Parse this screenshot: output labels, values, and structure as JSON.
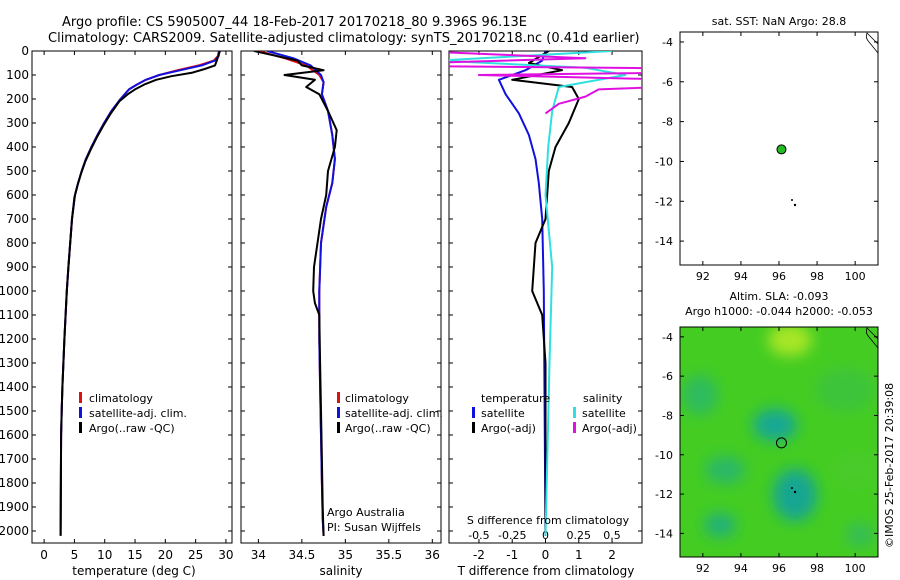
{
  "header": {
    "line1": "Argo profile: CS 5905007_44 18-Feb-2017 20170218_80 9.396S 96.13E",
    "line2": "Climatology: CARS2009. Satellite-adjusted climatology: synTS_20170218.nc (0.41d earlier)"
  },
  "colors": {
    "climatology": "#e01010",
    "satellite": "#1010e0",
    "argo": "#000000",
    "sat_salinity": "#30e0e0",
    "argo_salinity": "#e010e0",
    "marker_fill": "#22bb22",
    "sla_green": "#44cc22",
    "sla_teal": "#1aae88"
  },
  "chart_data": [
    {
      "id": "temperature",
      "type": "line",
      "xlabel": "temperature (deg C)",
      "ylabel": "",
      "xlim": [
        -2,
        31
      ],
      "ylim": [
        2050,
        0
      ],
      "xticks": [
        0,
        5,
        10,
        15,
        20,
        25,
        30
      ],
      "yticks": [
        0,
        100,
        200,
        300,
        400,
        500,
        600,
        700,
        800,
        900,
        1000,
        1100,
        1200,
        1300,
        1400,
        1500,
        1600,
        1700,
        1800,
        1900,
        2000
      ],
      "legend": [
        "climatology",
        "satellite-adj. clim.",
        "Argo(..raw -QC)"
      ],
      "series": [
        {
          "name": "climatology",
          "color": "#e01010",
          "x": [
            28.8,
            28.7,
            28.0,
            25.5,
            22,
            19,
            16.8,
            15.3,
            14,
            12.6,
            11.1,
            9.9,
            8.8,
            7.8,
            6.9,
            6.2,
            5.6,
            5.1,
            4.6,
            4.3,
            4.0,
            3.75,
            3.55,
            3.35,
            3.18,
            3.02,
            2.9,
            2.8,
            2.72
          ],
          "y": [
            0,
            20,
            40,
            60,
            80,
            100,
            120,
            140,
            160,
            200,
            250,
            300,
            350,
            400,
            450,
            500,
            550,
            600,
            700,
            800,
            900,
            1000,
            1100,
            1200,
            1300,
            1400,
            1500,
            1600,
            2020
          ]
        },
        {
          "name": "satellite-adj. clim.",
          "color": "#1010e0",
          "x": [
            28.9,
            28.8,
            28.2,
            26,
            22.5,
            19,
            16.8,
            15.3,
            14,
            12.6,
            11.1,
            9.9,
            8.8,
            7.8,
            6.9,
            6.2,
            5.6,
            5.1,
            4.6,
            4.3,
            4.0,
            3.75,
            3.55,
            3.35,
            3.18,
            3.02,
            2.9,
            2.8,
            2.72
          ],
          "y": [
            0,
            20,
            40,
            60,
            80,
            100,
            120,
            140,
            160,
            200,
            250,
            300,
            350,
            400,
            450,
            500,
            550,
            600,
            700,
            800,
            900,
            1000,
            1100,
            1200,
            1300,
            1400,
            1500,
            1600,
            2020
          ]
        },
        {
          "name": "Argo(..raw -QC)",
          "color": "#000000",
          "x": [
            29.0,
            28.8,
            28.5,
            28.2,
            26.5,
            24.5,
            21,
            18.5,
            16.5,
            15.0,
            13.8,
            12.4,
            11.0,
            9.8,
            8.7,
            7.7,
            6.8,
            6.1,
            5.5,
            5.0,
            4.6,
            4.3,
            4.0,
            3.75,
            3.55,
            3.35,
            3.18,
            3.02,
            2.9,
            2.8,
            2.72
          ],
          "y": [
            0,
            15,
            40,
            60,
            75,
            90,
            105,
            120,
            140,
            160,
            180,
            210,
            260,
            310,
            360,
            410,
            460,
            510,
            560,
            610,
            700,
            800,
            900,
            1000,
            1100,
            1200,
            1300,
            1400,
            1500,
            1600,
            2020
          ]
        }
      ]
    },
    {
      "id": "salinity",
      "type": "line",
      "xlabel": "salinity",
      "xlim": [
        33.8,
        36.1
      ],
      "ylim": [
        2050,
        0
      ],
      "xticks": [
        34,
        34.5,
        35,
        35.5,
        36
      ],
      "legend": [
        "climatology",
        "satellite-adj. clim.",
        "Argo(..raw -QC)"
      ],
      "annotation": [
        "Argo Australia",
        "PI: Susan Wijffels"
      ],
      "series": [
        {
          "name": "climatology",
          "color": "#e01010",
          "x": [
            34.0,
            34.3,
            34.55,
            34.7,
            34.75,
            34.73,
            34.8,
            34.85,
            34.88,
            34.85,
            34.78,
            34.72,
            34.7,
            34.7,
            34.71,
            34.72,
            34.73,
            34.74,
            34.75
          ],
          "y": [
            0,
            30,
            60,
            100,
            130,
            180,
            250,
            350,
            450,
            550,
            650,
            800,
            1000,
            1200,
            1400,
            1600,
            1800,
            1950,
            2020
          ]
        },
        {
          "name": "satellite-adj. clim.",
          "color": "#1010e0",
          "x": [
            34.1,
            34.4,
            34.6,
            34.72,
            34.75,
            34.73,
            34.8,
            34.85,
            34.88,
            34.85,
            34.78,
            34.72,
            34.7,
            34.7,
            34.71,
            34.72,
            34.73,
            34.74,
            34.75
          ],
          "y": [
            0,
            30,
            60,
            100,
            130,
            180,
            250,
            350,
            450,
            550,
            650,
            800,
            1000,
            1200,
            1400,
            1600,
            1800,
            1950,
            2020
          ]
        },
        {
          "name": "Argo(..raw -QC)",
          "color": "#000000",
          "x": [
            33.95,
            34.2,
            34.45,
            34.5,
            34.75,
            34.3,
            34.65,
            34.55,
            34.7,
            34.8,
            34.9,
            34.88,
            34.8,
            34.78,
            34.72,
            34.68,
            34.64,
            34.63,
            34.65,
            34.7,
            34.71,
            34.72,
            34.73,
            34.74,
            34.75
          ],
          "y": [
            0,
            20,
            40,
            60,
            80,
            100,
            120,
            150,
            180,
            250,
            330,
            400,
            500,
            600,
            700,
            800,
            900,
            1000,
            1050,
            1100,
            1300,
            1500,
            1700,
            1900,
            2020
          ]
        }
      ]
    },
    {
      "id": "difference",
      "type": "line",
      "xlabel": "T difference from climatology",
      "x2label": "S difference from climatology",
      "xlim": [
        -2.9,
        2.9
      ],
      "ylim": [
        2050,
        0
      ],
      "xticks": [
        -2,
        -1,
        0,
        1,
        2
      ],
      "x2ticks": [
        -0.5,
        -0.25,
        0,
        0.25,
        0.5
      ],
      "x2ticklabels": [
        "-0.5",
        "-0.25",
        "0",
        "0.25",
        "0.5"
      ],
      "legend_headers": [
        "temperature",
        "salinity"
      ],
      "legend_left": [
        "satellite",
        "Argo(-adj)"
      ],
      "legend_right": [
        "satellite",
        "Argo(-adj)"
      ],
      "series": [
        {
          "name": "T satellite",
          "color": "#1010e0",
          "x": [
            0,
            -0.1,
            -0.6,
            -1.4,
            -1.2,
            -0.8,
            -0.5,
            -0.3,
            -0.2,
            -0.1,
            -0.05,
            0
          ],
          "y": [
            0,
            40,
            80,
            120,
            180,
            260,
            350,
            450,
            550,
            700,
            1000,
            2020
          ]
        },
        {
          "name": "T Argo(-adj)",
          "color": "#000000",
          "x": [
            0.1,
            -0.5,
            0.5,
            -1.0,
            0.8,
            1.0,
            0.7,
            0.3,
            0.1,
            0,
            -0.3,
            -0.4,
            -0.1,
            0,
            0
          ],
          "y": [
            0,
            50,
            80,
            120,
            150,
            200,
            300,
            400,
            500,
            700,
            800,
            1000,
            1100,
            1300,
            2020
          ]
        },
        {
          "name": "S satellite",
          "color": "#30e0e0",
          "x": [
            0.5,
            -0.8,
            0.3,
            0.6,
            0.1,
            0.05,
            0.02,
            0,
            0.05,
            0.03,
            0
          ],
          "y": [
            0,
            40,
            70,
            100,
            150,
            250,
            400,
            600,
            900,
            1300,
            2020
          ]
        },
        {
          "name": "S Argo(-adj)",
          "color": "#e010e0",
          "x": [
            -1.0,
            0.3,
            -1.5,
            2.5,
            -0.5,
            1.8,
            0.4,
            0.3,
            0.1,
            0
          ],
          "y": [
            0,
            30,
            60,
            80,
            100,
            130,
            160,
            190,
            220,
            260
          ]
        }
      ]
    },
    {
      "id": "sst_map",
      "type": "scatter",
      "title": "sat. SST: NaN Argo: 28.8",
      "xlim": [
        90.8,
        101.2
      ],
      "ylim": [
        -15.2,
        -3.5
      ],
      "xticks": [
        92,
        94,
        96,
        98,
        100
      ],
      "yticks": [
        -4,
        -6,
        -8,
        -10,
        -12,
        -14
      ],
      "points": [
        {
          "lon": 96.13,
          "lat": -9.396,
          "label": "Argo"
        }
      ]
    },
    {
      "id": "sla_map",
      "type": "heatmap",
      "title": "Altim. SLA: -0.093",
      "subtitle": "Argo h1000: -0.044 h2000: -0.053",
      "xlim": [
        90.8,
        101.2
      ],
      "ylim": [
        -15.2,
        -3.5
      ],
      "xticks": [
        92,
        94,
        96,
        98,
        100
      ],
      "yticks": [
        -4,
        -6,
        -8,
        -10,
        -12,
        -14
      ],
      "points": [
        {
          "lon": 96.13,
          "lat": -9.396,
          "label": "Argo"
        }
      ]
    }
  ],
  "credit": "©IMOS 25-Feb-2017 20:39:08"
}
